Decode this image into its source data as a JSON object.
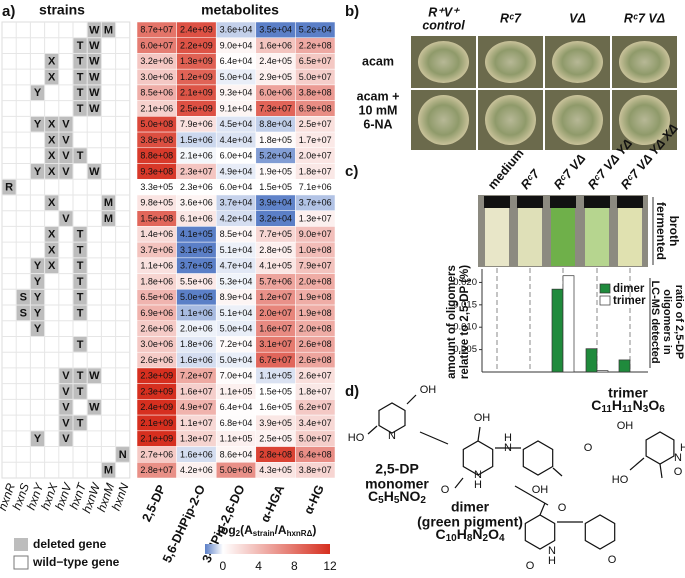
{
  "panel_a": {
    "label": "a)",
    "strains_title": "strains",
    "metabolites_title": "metabolites",
    "strains": [
      "hxnR",
      "hxnS",
      "hxnY",
      "hxnX",
      "hxnV",
      "hxnT",
      "hxnW",
      "hxnM",
      "hxnN"
    ],
    "metabolites": [
      "2,5-DP",
      "5,6-DHPip-2-O",
      "3-HPip-2,6-DO",
      "α-HGA",
      "α-HG"
    ],
    "rows": [
      {
        "deleted": [
          "W",
          "M"
        ],
        "values": [
          "8.7e+07",
          "2.4e+09",
          "3.6e+04",
          "3.5e+04",
          "5.2e+04"
        ]
      },
      {
        "deleted": [
          "T",
          "W"
        ],
        "values": [
          "6.0e+07",
          "2.2e+09",
          "9.0e+04",
          "1.6e+06",
          "2.2e+08"
        ]
      },
      {
        "deleted": [
          "X",
          "T",
          "W"
        ],
        "values": [
          "3.2e+06",
          "1.3e+09",
          "6.4e+04",
          "2.4e+05",
          "6.5e+07"
        ]
      },
      {
        "deleted": [
          "X",
          "T",
          "W"
        ],
        "values": [
          "3.0e+06",
          "1.2e+09",
          "5.0e+04",
          "2.9e+05",
          "5.0e+07"
        ]
      },
      {
        "deleted": [
          "Y",
          "T",
          "W"
        ],
        "values": [
          "8.5e+06",
          "2.1e+09",
          "9.3e+04",
          "6.0e+06",
          "3.8e+08"
        ]
      },
      {
        "deleted": [
          "T",
          "W"
        ],
        "values": [
          "2.1e+06",
          "2.5e+09",
          "9.1e+04",
          "7.3e+07",
          "6.9e+08"
        ]
      },
      {
        "deleted": [
          "Y",
          "X",
          "V"
        ],
        "values": [
          "5.0e+08",
          "7.9e+06",
          "4.5e+04",
          "8.8e+04",
          "2.5e+07"
        ]
      },
      {
        "deleted": [
          "X",
          "V"
        ],
        "values": [
          "3.8e+08",
          "1.5e+06",
          "4.4e+04",
          "1.8e+05",
          "1.7e+07"
        ]
      },
      {
        "deleted": [
          "X",
          "V",
          "T"
        ],
        "values": [
          "8.8e+08",
          "2.1e+06",
          "6.0e+04",
          "5.2e+04",
          "2.0e+07"
        ]
      },
      {
        "deleted": [
          "Y",
          "X",
          "V",
          "W"
        ],
        "values": [
          "9.3e+08",
          "2.3e+07",
          "4.9e+04",
          "1.9e+05",
          "1.8e+07"
        ]
      },
      {
        "deleted": [
          "R"
        ],
        "values": [
          "3.3e+05",
          "2.3e+06",
          "6.0e+04",
          "1.5e+05",
          "7.1e+06"
        ]
      },
      {
        "deleted": [
          "X",
          "M"
        ],
        "values": [
          "9.8e+05",
          "3.6e+06",
          "3.7e+04",
          "3.9e+04",
          "3.7e+06"
        ]
      },
      {
        "deleted": [
          "V",
          "M"
        ],
        "values": [
          "1.5e+08",
          "6.1e+06",
          "4.2e+04",
          "3.2e+04",
          "1.3e+07"
        ]
      },
      {
        "deleted": [
          "X",
          "T"
        ],
        "values": [
          "1.4e+06",
          "4.1e+05",
          "8.5e+04",
          "7.7e+05",
          "9.0e+07"
        ]
      },
      {
        "deleted": [
          "X",
          "T"
        ],
        "values": [
          "3.7e+06",
          "3.1e+05",
          "5.1e+04",
          "2.8e+05",
          "1.0e+08"
        ]
      },
      {
        "deleted": [
          "Y",
          "X",
          "T"
        ],
        "values": [
          "1.1e+06",
          "3.7e+05",
          "4.7e+04",
          "4.1e+05",
          "7.9e+07"
        ]
      },
      {
        "deleted": [
          "Y",
          "T"
        ],
        "values": [
          "1.8e+06",
          "5.5e+06",
          "5.3e+04",
          "5.7e+06",
          "2.0e+08"
        ]
      },
      {
        "deleted": [
          "S",
          "Y",
          "T"
        ],
        "values": [
          "6.5e+06",
          "5.0e+05",
          "8.9e+04",
          "1.2e+07",
          "1.9e+08"
        ]
      },
      {
        "deleted": [
          "S",
          "Y",
          "T"
        ],
        "values": [
          "6.9e+06",
          "1.1e+06",
          "5.1e+04",
          "2.0e+07",
          "1.9e+08"
        ]
      },
      {
        "deleted": [
          "Y"
        ],
        "values": [
          "2.6e+06",
          "2.0e+06",
          "5.0e+04",
          "1.6e+07",
          "2.0e+08"
        ]
      },
      {
        "deleted": [
          "T"
        ],
        "values": [
          "3.0e+06",
          "1.8e+06",
          "7.2e+04",
          "3.1e+07",
          "2.6e+08"
        ]
      },
      {
        "deleted": [],
        "values": [
          "2.6e+06",
          "1.6e+06",
          "5.0e+04",
          "6.7e+07",
          "2.6e+08"
        ]
      },
      {
        "deleted": [
          "V",
          "T",
          "W"
        ],
        "values": [
          "2.3e+09",
          "7.2e+07",
          "7.0e+04",
          "1.1e+05",
          "2.6e+07"
        ]
      },
      {
        "deleted": [
          "V",
          "T"
        ],
        "values": [
          "2.3e+09",
          "1.6e+07",
          "1.1e+05",
          "1.5e+05",
          "1.8e+07"
        ]
      },
      {
        "deleted": [
          "V",
          "W"
        ],
        "values": [
          "2.4e+09",
          "4.9e+07",
          "6.4e+04",
          "1.6e+05",
          "6.2e+07"
        ]
      },
      {
        "deleted": [
          "V",
          "T"
        ],
        "values": [
          "2.1e+09",
          "1.1e+07",
          "6.8e+04",
          "3.9e+05",
          "3.4e+07"
        ]
      },
      {
        "deleted": [
          "Y",
          "V"
        ],
        "values": [
          "2.1e+09",
          "1.3e+07",
          "1.1e+05",
          "2.5e+05",
          "5.0e+07"
        ]
      },
      {
        "deleted": [
          "N"
        ],
        "values": [
          "2.7e+06",
          "1.6e+06",
          "8.6e+04",
          "2.8e+08",
          "6.4e+08"
        ]
      },
      {
        "deleted": [
          "M"
        ],
        "values": [
          "2.8e+07",
          "4.2e+06",
          "5.0e+06",
          "4.3e+05",
          "3.8e+07"
        ]
      }
    ],
    "legend": {
      "deleted": "deleted gene",
      "wildtype": "wild−type gene"
    },
    "colorbar": {
      "label": [
        "log",
        "2",
        "(A",
        "strain",
        "/A",
        "hxnRΔ",
        ")"
      ],
      "ticks": [
        0,
        4,
        8,
        12
      ],
      "lim": [
        -2,
        12
      ],
      "colors": [
        "#5b7fc7",
        "#ffffff",
        "#d62f1f"
      ]
    }
  },
  "panel_b": {
    "label": "b)",
    "columns": [
      [
        "R⁺V⁺",
        "control"
      ],
      [
        "Rᶜ7"
      ],
      [
        "VΔ"
      ],
      [
        "Rᶜ7 VΔ"
      ]
    ],
    "rows": [
      [
        "acam"
      ],
      [
        "acam +",
        "10 mM",
        "6-NA"
      ]
    ]
  },
  "panel_c": {
    "label": "c)",
    "side_label": [
      "fermented",
      "broth"
    ],
    "right_label": [
      "LC-MS detected",
      "oligomers in",
      "ratio of 2,5-DP"
    ]
  },
  "chart_data": {
    "type": "bar",
    "categories": [
      "medium",
      "Rᶜ7",
      "Rᶜ7 VΔ",
      "Rᶜ7 VΔ YΔ",
      "Rᶜ7 VΔ YΔ XΔ"
    ],
    "series": [
      {
        "name": "dimer",
        "color": "#1f8a3c",
        "values": [
          0,
          0,
          0.0185,
          0.0052,
          0.0027
        ]
      },
      {
        "name": "trimer",
        "color": "#ffffff",
        "values": [
          0,
          0,
          0.0215,
          0.0003,
          0
        ]
      }
    ],
    "ylabel": [
      "amount of oligomers",
      "relative to 2,5-DP (%)"
    ],
    "ylim": [
      0,
      0.023
    ],
    "yticks": [
      0.005,
      {
        "value": 0.01,
        "label": "0.010"
      },
      0.015,
      {
        "value": 0.02,
        "label": "0.020"
      }
    ]
  },
  "panel_d": {
    "label": "d)",
    "monomer": [
      "2,5-DP",
      "monomer",
      "C5H5NO2"
    ],
    "dimer": [
      "dimer",
      "(green pigment)",
      "C10H8N2O4"
    ],
    "trimer": [
      "trimer",
      "C11H11N3O6"
    ],
    "atoms": [
      "HO",
      "N",
      "OH",
      "OH",
      "N",
      "H",
      "O",
      "O",
      "N",
      "H",
      "OH",
      "OH",
      "N",
      "H",
      "O",
      "HO",
      "O",
      "O",
      "N",
      "H",
      "O"
    ]
  }
}
